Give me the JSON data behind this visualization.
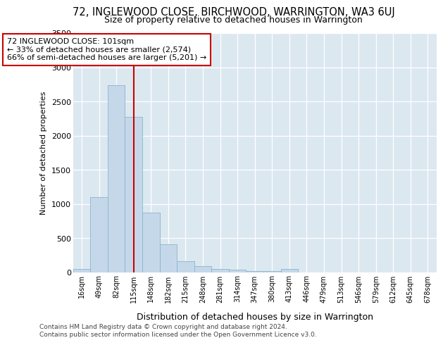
{
  "title": "72, INGLEWOOD CLOSE, BIRCHWOOD, WARRINGTON, WA3 6UJ",
  "subtitle": "Size of property relative to detached houses in Warrington",
  "xlabel": "Distribution of detached houses by size in Warrington",
  "ylabel": "Number of detached properties",
  "categories": [
    "16sqm",
    "49sqm",
    "82sqm",
    "115sqm",
    "148sqm",
    "182sqm",
    "215sqm",
    "248sqm",
    "281sqm",
    "314sqm",
    "347sqm",
    "380sqm",
    "413sqm",
    "446sqm",
    "479sqm",
    "513sqm",
    "546sqm",
    "579sqm",
    "612sqm",
    "645sqm",
    "678sqm"
  ],
  "values": [
    50,
    1100,
    2740,
    2280,
    880,
    415,
    165,
    95,
    55,
    40,
    25,
    18,
    50,
    0,
    0,
    0,
    0,
    0,
    0,
    0,
    0
  ],
  "bar_color": "#c5d8ea",
  "bar_edgecolor": "#8ab4cc",
  "annotation_box_text": "72 INGLEWOOD CLOSE: 101sqm\n← 33% of detached houses are smaller (2,574)\n66% of semi-detached houses are larger (5,201) →",
  "annotation_box_color": "#ffffff",
  "annotation_line_color": "#cc0000",
  "redline_x": 3.0,
  "ylim": [
    0,
    3500
  ],
  "yticks": [
    0,
    500,
    1000,
    1500,
    2000,
    2500,
    3000,
    3500
  ],
  "bg_color": "#dce8f0",
  "footer_line1": "Contains HM Land Registry data © Crown copyright and database right 2024.",
  "footer_line2": "Contains public sector information licensed under the Open Government Licence v3.0."
}
